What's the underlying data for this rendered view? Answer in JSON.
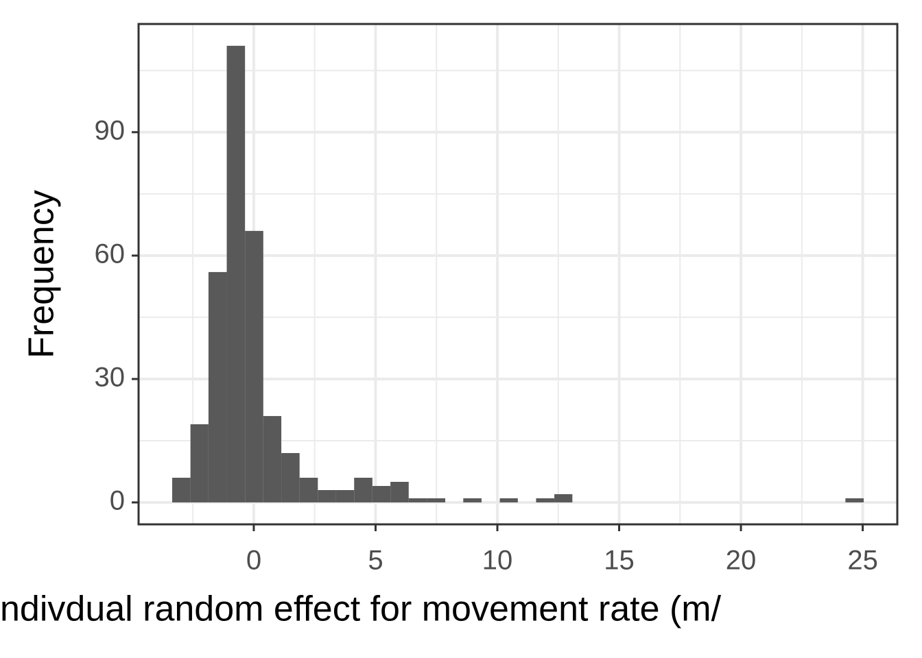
{
  "chart_data": {
    "type": "histogram",
    "x_label": "ndivdual random effect for movement rate (m/",
    "y_label": "Frequency",
    "bins": [
      -3.35,
      -2.6,
      -1.86,
      -1.11,
      -0.36,
      0.39,
      1.13,
      1.88,
      2.63,
      3.37,
      4.12,
      4.87,
      5.61,
      6.36,
      7.11,
      7.86,
      8.6,
      9.35,
      10.1,
      10.84,
      11.59,
      12.34,
      13.08,
      13.83,
      14.58,
      15.33,
      16.07,
      16.82,
      17.57,
      18.31,
      19.06,
      19.81,
      20.55,
      21.3,
      22.05,
      22.8,
      23.54,
      24.29,
      25.04
    ],
    "values": [
      6,
      19,
      56,
      111,
      66,
      21,
      12,
      6,
      3,
      3,
      6,
      4,
      5,
      1,
      1,
      0,
      1,
      0,
      1,
      0,
      1,
      2,
      0,
      0,
      0,
      0,
      0,
      0,
      0,
      0,
      0,
      0,
      0,
      0,
      0,
      0,
      0,
      1
    ],
    "color": "#595959",
    "xlim": [
      -4.73,
      26.42
    ],
    "xticks": [
      0,
      5,
      10,
      15,
      20,
      25
    ],
    "ylim": [
      -5.33,
      116.3
    ],
    "yticks": [
      0,
      30,
      60,
      90
    ],
    "grid": true
  }
}
